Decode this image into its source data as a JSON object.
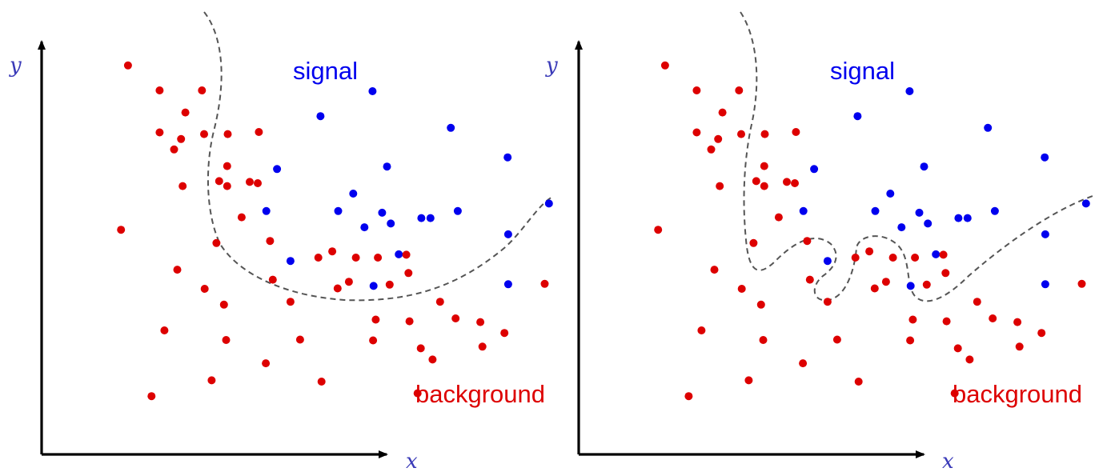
{
  "colors": {
    "signal": "#0000ee",
    "background": "#dd0000",
    "axis_labels": "#3a3ab8",
    "boundary": "#555555"
  },
  "chart_data": [
    {
      "type": "scatter",
      "xlabel": "x",
      "ylabel": "y",
      "labels": {
        "signal": "signal",
        "background": "background"
      },
      "boundary_style": "dashed",
      "boundary": "smooth",
      "series": [
        {
          "name": "signal",
          "points": [
            [
              0.617,
              0.873
            ],
            [
              0.763,
              0.785
            ],
            [
              0.644,
              0.692
            ],
            [
              0.52,
              0.813
            ],
            [
              0.869,
              0.714
            ],
            [
              0.439,
              0.686
            ],
            [
              0.581,
              0.627
            ],
            [
              0.419,
              0.585
            ],
            [
              0.553,
              0.585
            ],
            [
              0.635,
              0.581
            ],
            [
              0.708,
              0.568
            ],
            [
              0.776,
              0.585
            ],
            [
              0.602,
              0.546
            ],
            [
              0.651,
              0.555
            ],
            [
              0.946,
              0.603
            ],
            [
              0.725,
              0.568
            ],
            [
              0.87,
              0.529
            ],
            [
              0.666,
              0.481
            ],
            [
              0.464,
              0.465
            ],
            [
              0.619,
              0.405
            ],
            [
              0.87,
              0.409
            ]
          ]
        },
        {
          "name": "background",
          "points": [
            [
              0.161,
              0.935
            ],
            [
              0.22,
              0.875
            ],
            [
              0.299,
              0.875
            ],
            [
              0.268,
              0.822
            ],
            [
              0.22,
              0.774
            ],
            [
              0.26,
              0.758
            ],
            [
              0.303,
              0.77
            ],
            [
              0.347,
              0.77
            ],
            [
              0.405,
              0.775
            ],
            [
              0.247,
              0.733
            ],
            [
              0.346,
              0.693
            ],
            [
              0.388,
              0.655
            ],
            [
              0.263,
              0.645
            ],
            [
              0.346,
              0.645
            ],
            [
              0.403,
              0.652
            ],
            [
              0.331,
              0.657
            ],
            [
              0.373,
              0.57
            ],
            [
              0.148,
              0.54
            ],
            [
              0.326,
              0.508
            ],
            [
              0.426,
              0.513
            ],
            [
              0.542,
              0.488
            ],
            [
              0.516,
              0.473
            ],
            [
              0.586,
              0.473
            ],
            [
              0.68,
              0.48
            ],
            [
              0.627,
              0.473
            ],
            [
              0.684,
              0.436
            ],
            [
              0.253,
              0.444
            ],
            [
              0.431,
              0.42
            ],
            [
              0.552,
              0.399
            ],
            [
              0.304,
              0.398
            ],
            [
              0.573,
              0.415
            ],
            [
              0.649,
              0.408
            ],
            [
              0.464,
              0.367
            ],
            [
              0.34,
              0.36
            ],
            [
              0.743,
              0.367
            ],
            [
              0.623,
              0.324
            ],
            [
              0.686,
              0.32
            ],
            [
              0.818,
              0.318
            ],
            [
              0.772,
              0.327
            ],
            [
              0.938,
              0.41
            ],
            [
              0.229,
              0.298
            ],
            [
              0.344,
              0.275
            ],
            [
              0.482,
              0.276
            ],
            [
              0.618,
              0.274
            ],
            [
              0.707,
              0.255
            ],
            [
              0.822,
              0.259
            ],
            [
              0.863,
              0.292
            ],
            [
              0.418,
              0.219
            ],
            [
              0.729,
              0.228
            ],
            [
              0.317,
              0.178
            ],
            [
              0.522,
              0.175
            ],
            [
              0.701,
              0.147
            ],
            [
              0.205,
              0.14
            ]
          ]
        }
      ]
    },
    {
      "type": "scatter",
      "xlabel": "x",
      "ylabel": "y",
      "labels": {
        "signal": "signal",
        "background": "background"
      },
      "boundary_style": "dashed",
      "boundary": "overfitted",
      "series": [
        {
          "name": "signal",
          "points": [
            [
              0.617,
              0.873
            ],
            [
              0.763,
              0.785
            ],
            [
              0.644,
              0.692
            ],
            [
              0.52,
              0.813
            ],
            [
              0.869,
              0.714
            ],
            [
              0.439,
              0.686
            ],
            [
              0.581,
              0.627
            ],
            [
              0.419,
              0.585
            ],
            [
              0.553,
              0.585
            ],
            [
              0.635,
              0.581
            ],
            [
              0.708,
              0.568
            ],
            [
              0.776,
              0.585
            ],
            [
              0.602,
              0.546
            ],
            [
              0.651,
              0.555
            ],
            [
              0.946,
              0.603
            ],
            [
              0.725,
              0.568
            ],
            [
              0.87,
              0.529
            ],
            [
              0.666,
              0.481
            ],
            [
              0.464,
              0.465
            ],
            [
              0.619,
              0.405
            ],
            [
              0.87,
              0.409
            ]
          ]
        },
        {
          "name": "background",
          "points": [
            [
              0.161,
              0.935
            ],
            [
              0.22,
              0.875
            ],
            [
              0.299,
              0.875
            ],
            [
              0.268,
              0.822
            ],
            [
              0.22,
              0.774
            ],
            [
              0.26,
              0.758
            ],
            [
              0.303,
              0.77
            ],
            [
              0.347,
              0.77
            ],
            [
              0.405,
              0.775
            ],
            [
              0.247,
              0.733
            ],
            [
              0.346,
              0.693
            ],
            [
              0.388,
              0.655
            ],
            [
              0.263,
              0.645
            ],
            [
              0.346,
              0.645
            ],
            [
              0.403,
              0.652
            ],
            [
              0.331,
              0.657
            ],
            [
              0.373,
              0.57
            ],
            [
              0.148,
              0.54
            ],
            [
              0.326,
              0.508
            ],
            [
              0.426,
              0.513
            ],
            [
              0.542,
              0.488
            ],
            [
              0.516,
              0.473
            ],
            [
              0.586,
              0.473
            ],
            [
              0.68,
              0.48
            ],
            [
              0.627,
              0.473
            ],
            [
              0.684,
              0.436
            ],
            [
              0.253,
              0.444
            ],
            [
              0.431,
              0.42
            ],
            [
              0.552,
              0.399
            ],
            [
              0.304,
              0.398
            ],
            [
              0.573,
              0.415
            ],
            [
              0.649,
              0.408
            ],
            [
              0.464,
              0.367
            ],
            [
              0.34,
              0.36
            ],
            [
              0.743,
              0.367
            ],
            [
              0.623,
              0.324
            ],
            [
              0.686,
              0.32
            ],
            [
              0.818,
              0.318
            ],
            [
              0.772,
              0.327
            ],
            [
              0.938,
              0.41
            ],
            [
              0.229,
              0.298
            ],
            [
              0.344,
              0.275
            ],
            [
              0.482,
              0.276
            ],
            [
              0.618,
              0.274
            ],
            [
              0.707,
              0.255
            ],
            [
              0.822,
              0.259
            ],
            [
              0.863,
              0.292
            ],
            [
              0.418,
              0.219
            ],
            [
              0.729,
              0.228
            ],
            [
              0.317,
              0.178
            ],
            [
              0.522,
              0.175
            ],
            [
              0.701,
              0.147
            ],
            [
              0.205,
              0.14
            ]
          ]
        }
      ]
    }
  ]
}
